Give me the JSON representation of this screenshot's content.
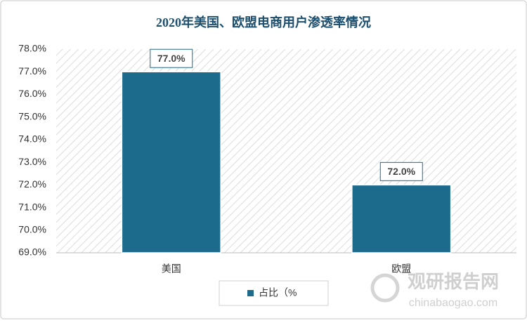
{
  "chart_data": {
    "type": "bar",
    "title": "2020年美国、欧盟电商用户渗透率情况",
    "categories": [
      "美国",
      "欧盟"
    ],
    "series": [
      {
        "name": "占比（%",
        "color": "#1c6a8c",
        "values": [
          77,
          72
        ],
        "value_labels": [
          "77.0%",
          "72.0%"
        ]
      }
    ],
    "ylim": [
      69,
      78
    ],
    "yticks": [
      {
        "value": 69,
        "label": "69.0%"
      },
      {
        "value": 70,
        "label": "70.0%"
      },
      {
        "value": 71,
        "label": "71.0%"
      },
      {
        "value": 72,
        "label": "72.0%"
      },
      {
        "value": 73,
        "label": "73.0%"
      },
      {
        "value": 74,
        "label": "74.0%"
      },
      {
        "value": 75,
        "label": "75.0%"
      },
      {
        "value": 76,
        "label": "76.0%"
      },
      {
        "value": 77,
        "label": "77.0%"
      },
      {
        "value": 78,
        "label": "78.0%"
      }
    ],
    "grid": false,
    "legend": "bottom",
    "watermark": {
      "name": "观研报告网",
      "url": "chinabaogao.com"
    }
  }
}
